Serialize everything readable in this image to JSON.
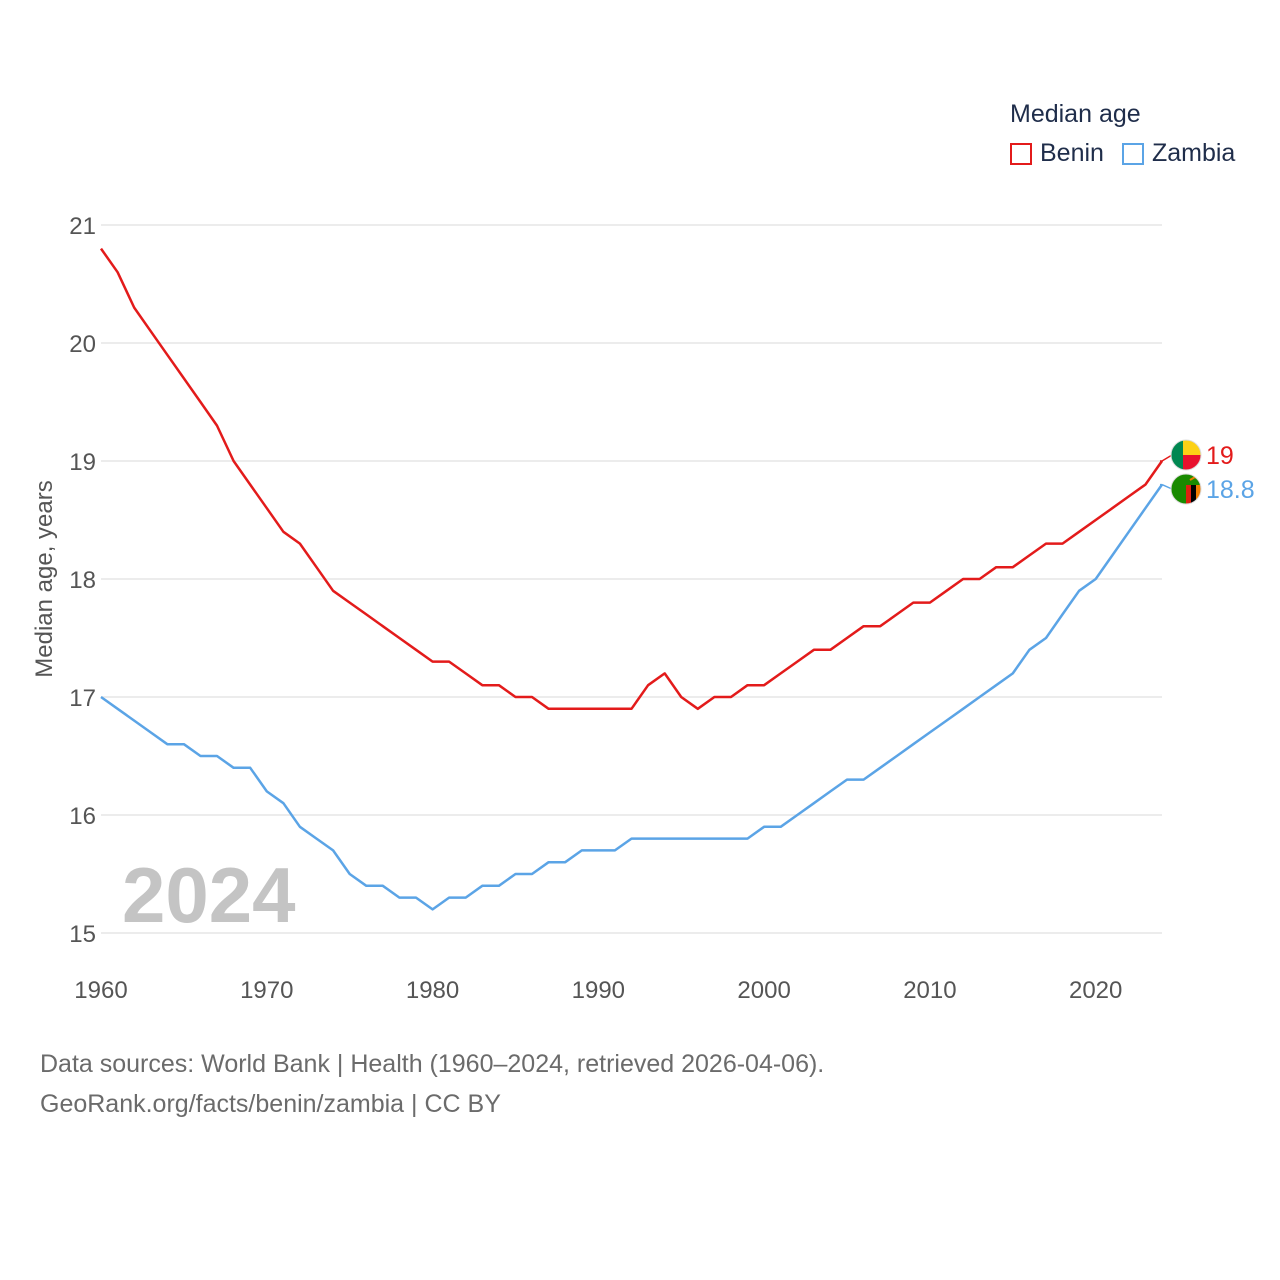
{
  "chart_data": {
    "type": "line",
    "title": "",
    "xlabel": "",
    "ylabel": "Median age, years",
    "year_label": "2024",
    "legend_title": "Median age",
    "xlim": [
      1960,
      2024
    ],
    "ylim": [
      15,
      21
    ],
    "x_ticks": [
      1960,
      1970,
      1980,
      1990,
      2000,
      2010,
      2020
    ],
    "y_ticks": [
      15,
      16,
      17,
      18,
      19,
      20,
      21
    ],
    "series": [
      {
        "name": "Benin",
        "color": "#e31b1b",
        "icon": "benin-flag-icon",
        "end_label": "19",
        "x": [
          1960,
          1961,
          1962,
          1963,
          1964,
          1965,
          1966,
          1967,
          1968,
          1969,
          1970,
          1971,
          1972,
          1973,
          1974,
          1975,
          1976,
          1977,
          1978,
          1979,
          1980,
          1981,
          1982,
          1983,
          1984,
          1985,
          1986,
          1987,
          1988,
          1989,
          1990,
          1991,
          1992,
          1993,
          1994,
          1995,
          1996,
          1997,
          1998,
          1999,
          2000,
          2001,
          2002,
          2003,
          2004,
          2005,
          2006,
          2007,
          2008,
          2009,
          2010,
          2011,
          2012,
          2013,
          2014,
          2015,
          2016,
          2017,
          2018,
          2019,
          2020,
          2021,
          2022,
          2023,
          2024
        ],
        "values": [
          20.8,
          20.6,
          20.3,
          20.1,
          19.9,
          19.7,
          19.5,
          19.3,
          19.0,
          18.8,
          18.6,
          18.4,
          18.3,
          18.1,
          17.9,
          17.8,
          17.7,
          17.6,
          17.5,
          17.4,
          17.3,
          17.3,
          17.2,
          17.1,
          17.1,
          17.0,
          17.0,
          16.9,
          16.9,
          16.9,
          16.9,
          16.9,
          16.9,
          17.1,
          17.2,
          17.0,
          16.9,
          17.0,
          17.0,
          17.1,
          17.1,
          17.2,
          17.3,
          17.4,
          17.4,
          17.5,
          17.6,
          17.6,
          17.7,
          17.8,
          17.8,
          17.9,
          18.0,
          18.0,
          18.1,
          18.1,
          18.2,
          18.3,
          18.3,
          18.4,
          18.5,
          18.6,
          18.7,
          18.8,
          19.0
        ]
      },
      {
        "name": "Zambia",
        "color": "#5ba4e6",
        "icon": "zambia-flag-icon",
        "end_label": "18.8",
        "x": [
          1960,
          1961,
          1962,
          1963,
          1964,
          1965,
          1966,
          1967,
          1968,
          1969,
          1970,
          1971,
          1972,
          1973,
          1974,
          1975,
          1976,
          1977,
          1978,
          1979,
          1980,
          1981,
          1982,
          1983,
          1984,
          1985,
          1986,
          1987,
          1988,
          1989,
          1990,
          1991,
          1992,
          1993,
          1994,
          1995,
          1996,
          1997,
          1998,
          1999,
          2000,
          2001,
          2002,
          2003,
          2004,
          2005,
          2006,
          2007,
          2008,
          2009,
          2010,
          2011,
          2012,
          2013,
          2014,
          2015,
          2016,
          2017,
          2018,
          2019,
          2020,
          2021,
          2022,
          2023,
          2024
        ],
        "values": [
          17.0,
          16.9,
          16.8,
          16.7,
          16.6,
          16.6,
          16.5,
          16.5,
          16.4,
          16.4,
          16.2,
          16.1,
          15.9,
          15.8,
          15.7,
          15.5,
          15.4,
          15.4,
          15.3,
          15.3,
          15.2,
          15.3,
          15.3,
          15.4,
          15.4,
          15.5,
          15.5,
          15.6,
          15.6,
          15.7,
          15.7,
          15.7,
          15.8,
          15.8,
          15.8,
          15.8,
          15.8,
          15.8,
          15.8,
          15.8,
          15.9,
          15.9,
          16.0,
          16.1,
          16.2,
          16.3,
          16.3,
          16.4,
          16.5,
          16.6,
          16.7,
          16.8,
          16.9,
          17.0,
          17.1,
          17.2,
          17.4,
          17.5,
          17.7,
          17.9,
          18.0,
          18.2,
          18.4,
          18.6,
          18.8
        ]
      }
    ]
  },
  "source": {
    "line1": "Data sources: World Bank | Health (1960–2024, retrieved 2026-04-06).",
    "line2": "GeoRank.org/facts/benin/zambia | CC BY"
  }
}
